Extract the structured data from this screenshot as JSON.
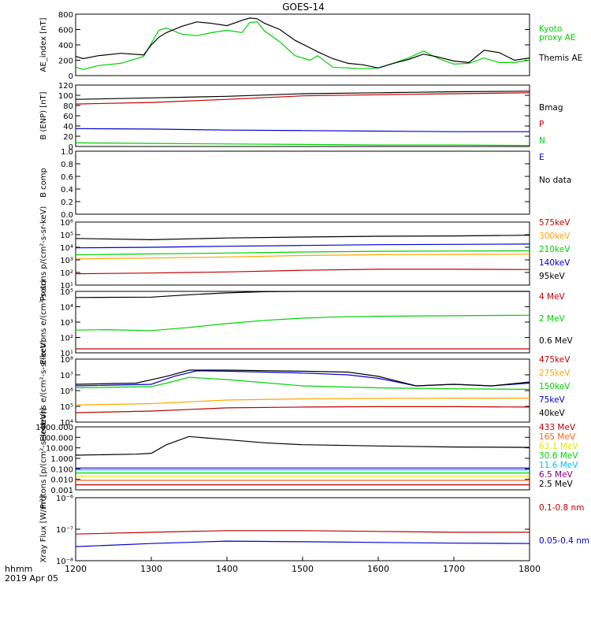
{
  "title": "GOES-14",
  "footer": {
    "time_label": "hhmm",
    "date_label": "2019 Apr 05"
  },
  "x_axis": {
    "min": 1200,
    "max": 1800,
    "ticks": [
      "1200",
      "1300",
      "1400",
      "1500",
      "1600",
      "1700",
      "1800"
    ]
  },
  "colors": {
    "black": "#000000",
    "red": "#c00000",
    "green": "#00d000",
    "blue": "#0000d0",
    "orange": "#ffa500",
    "cyan": "#00c0ff",
    "yellow": "#e8e800",
    "purple": "#800080"
  },
  "chart_data": [
    {
      "type": "line",
      "ylabel": "AE_index [nT]",
      "ylim": [
        0,
        800
      ],
      "yticks": [
        "0",
        "200",
        "400",
        "600",
        "800"
      ],
      "series": [
        {
          "name": "Kyoto proxy AE",
          "color": "#00d000",
          "x": [
            1200,
            1210,
            1230,
            1260,
            1290,
            1300,
            1310,
            1320,
            1340,
            1360,
            1380,
            1400,
            1420,
            1430,
            1440,
            1450,
            1470,
            1490,
            1510,
            1520,
            1540,
            1560,
            1580,
            1600,
            1620,
            1640,
            1660,
            1680,
            1700,
            1720,
            1740,
            1760,
            1780,
            1800
          ],
          "y": [
            110,
            80,
            130,
            160,
            250,
            420,
            590,
            620,
            540,
            520,
            560,
            590,
            560,
            690,
            700,
            580,
            440,
            260,
            200,
            260,
            110,
            100,
            90,
            100,
            160,
            230,
            320,
            220,
            150,
            160,
            230,
            170,
            170,
            200
          ]
        },
        {
          "name": "Themis AE",
          "color": "#000000",
          "x": [
            1200,
            1210,
            1230,
            1260,
            1290,
            1300,
            1310,
            1320,
            1340,
            1360,
            1380,
            1400,
            1420,
            1430,
            1440,
            1450,
            1470,
            1490,
            1510,
            1520,
            1540,
            1560,
            1580,
            1600,
            1620,
            1640,
            1660,
            1680,
            1700,
            1720,
            1740,
            1760,
            1780,
            1800
          ],
          "y": [
            250,
            220,
            260,
            290,
            270,
            400,
            500,
            560,
            640,
            700,
            680,
            650,
            720,
            750,
            740,
            680,
            600,
            460,
            360,
            310,
            220,
            160,
            140,
            100,
            160,
            210,
            280,
            240,
            190,
            170,
            330,
            300,
            200,
            230
          ]
        }
      ],
      "labels": [
        {
          "text": "Kyoto",
          "color": "#00d000"
        },
        {
          "text": "proxy AE",
          "color": "#00d000"
        },
        {
          "text": "Themis AE",
          "color": "#000000"
        }
      ]
    },
    {
      "type": "line",
      "ylabel": "B (ENP) [nT]",
      "ylim": [
        0,
        120
      ],
      "yticks": [
        "0",
        "20",
        "40",
        "60",
        "80",
        "100",
        "120"
      ],
      "series": [
        {
          "name": "Bmag",
          "color": "#000000",
          "x": [
            1200,
            1300,
            1400,
            1500,
            1600,
            1700,
            1800
          ],
          "y": [
            92,
            95,
            98,
            103,
            105,
            107,
            108
          ]
        },
        {
          "name": "P",
          "color": "#c00000",
          "x": [
            1200,
            1300,
            1400,
            1500,
            1600,
            1700,
            1800
          ],
          "y": [
            83,
            86,
            92,
            99,
            101,
            103,
            105
          ]
        },
        {
          "name": "N",
          "color": "#00d000",
          "x": [
            1200,
            1300,
            1400,
            1500,
            1600,
            1700,
            1800
          ],
          "y": [
            7,
            6,
            5,
            4,
            3,
            3,
            2
          ]
        },
        {
          "name": "E",
          "color": "#0000d0",
          "x": [
            1200,
            1300,
            1400,
            1500,
            1600,
            1700,
            1800
          ],
          "y": [
            35,
            34,
            32,
            31,
            30,
            29,
            29
          ]
        }
      ],
      "labels": [
        {
          "text": "Bmag",
          "color": "#000000"
        },
        {
          "text": "P",
          "color": "#c00000"
        },
        {
          "text": "N",
          "color": "#00d000"
        },
        {
          "text": "E",
          "color": "#0000d0"
        }
      ]
    },
    {
      "type": "line",
      "ylabel": "B comp",
      "ylim": [
        0,
        1
      ],
      "yticks": [
        "0.0",
        "0.2",
        "0.4",
        "0.6",
        "0.8",
        "1.0"
      ],
      "series": [],
      "labels": [
        {
          "text": "No data",
          "color": "#000000"
        }
      ]
    },
    {
      "type": "line",
      "log": true,
      "ylabel": "Protons p/(cm²-s-sr-keV)",
      "ylim": [
        10,
        1000000
      ],
      "yticks": [
        "10¹",
        "10²",
        "10³",
        "10⁴",
        "10⁵",
        "10⁶"
      ],
      "series": [
        {
          "name": "575keV",
          "color": "#c00000",
          "x": [
            1200,
            1300,
            1400,
            1500,
            1600,
            1700,
            1800
          ],
          "y": [
            80,
            90,
            110,
            150,
            180,
            180,
            170
          ]
        },
        {
          "name": "300keV",
          "color": "#ffa500",
          "x": [
            1200,
            1300,
            1400,
            1500,
            1600,
            1700,
            1800
          ],
          "y": [
            1200,
            1400,
            1700,
            2200,
            2600,
            2700,
            2800
          ]
        },
        {
          "name": "210keV",
          "color": "#00d000",
          "x": [
            1200,
            1300,
            1400,
            1500,
            1600,
            1700,
            1800
          ],
          "y": [
            2500,
            3000,
            3500,
            4200,
            4800,
            5000,
            5200
          ]
        },
        {
          "name": "140keV",
          "color": "#0000d0",
          "x": [
            1200,
            1300,
            1400,
            1500,
            1600,
            1700,
            1800
          ],
          "y": [
            9000,
            10000,
            12000,
            14000,
            16000,
            17000,
            18000
          ]
        },
        {
          "name": "95keV",
          "color": "#000000",
          "x": [
            1200,
            1300,
            1400,
            1500,
            1600,
            1700,
            1800
          ],
          "y": [
            50000,
            40000,
            55000,
            65000,
            75000,
            80000,
            90000
          ]
        }
      ],
      "labels": [
        {
          "text": "575keV",
          "color": "#c00000"
        },
        {
          "text": "300keV",
          "color": "#ffa500"
        },
        {
          "text": "210keV",
          "color": "#00d000"
        },
        {
          "text": "140keV",
          "color": "#0000d0"
        },
        {
          "text": "95keV",
          "color": "#000000"
        }
      ]
    },
    {
      "type": "line",
      "log": true,
      "ylabel": "Electrons e/(cm²-s-sr)",
      "ylim": [
        10,
        100000
      ],
      "yticks": [
        "10¹",
        "10²",
        "10³",
        "10⁴",
        "10⁵"
      ],
      "series": [
        {
          "name": "4 MeV",
          "color": "#c00000",
          "x": [
            1200,
            1300,
            1400,
            1500,
            1600,
            1700,
            1800
          ],
          "y": [
            18,
            18,
            18,
            18,
            18,
            18,
            18
          ]
        },
        {
          "name": "2 MeV",
          "color": "#00d000",
          "x": [
            1200,
            1240,
            1300,
            1350,
            1400,
            1450,
            1500,
            1550,
            1600,
            1700,
            1800
          ],
          "y": [
            300,
            320,
            280,
            450,
            800,
            1300,
            1800,
            2200,
            2400,
            2600,
            2800
          ]
        },
        {
          "name": "0.6 MeV",
          "color": "#000000",
          "x": [
            1200,
            1300,
            1350,
            1400,
            1450,
            1500,
            1600,
            1700,
            1800
          ],
          "y": [
            40000,
            42000,
            60000,
            80000,
            95000,
            100000,
            100000,
            100000,
            100000
          ]
        }
      ],
      "labels": [
        {
          "text": "4 MeV",
          "color": "#c00000"
        },
        {
          "text": "2 MeV",
          "color": "#00d000"
        },
        {
          "text": "0.6 MeV",
          "color": "#000000"
        }
      ]
    },
    {
      "type": "line",
      "log": true,
      "ylabel": "Electrons e/(cm²-s-sr-keV)",
      "ylim": [
        10000,
        100000000
      ],
      "yticks": [
        "10⁴",
        "10⁵",
        "10⁶",
        "10⁷",
        "10⁸"
      ],
      "series": [
        {
          "name": "475keV",
          "color": "#c00000",
          "x": [
            1200,
            1300,
            1400,
            1500,
            1600,
            1700,
            1800
          ],
          "y": [
            40000,
            50000,
            80000,
            90000,
            95000,
            95000,
            90000
          ]
        },
        {
          "name": "275keV",
          "color": "#ffa500",
          "x": [
            1200,
            1300,
            1400,
            1500,
            1600,
            1700,
            1800
          ],
          "y": [
            120000,
            150000,
            250000,
            300000,
            320000,
            330000,
            330000
          ]
        },
        {
          "name": "150keV",
          "color": "#00d000",
          "x": [
            1200,
            1300,
            1320,
            1350,
            1400,
            1500,
            1600,
            1700,
            1800
          ],
          "y": [
            1500000,
            1800000,
            3000000,
            7000000,
            5000000,
            2000000,
            1500000,
            1300000,
            1200000
          ]
        },
        {
          "name": "75keV",
          "color": "#0000d0",
          "x": [
            1200,
            1300,
            1330,
            1360,
            1400,
            1500,
            1560,
            1600,
            1650,
            1700,
            1750,
            1800
          ],
          "y": [
            2000000,
            2500000,
            8000000,
            18000000,
            17000000,
            13000000,
            10000000,
            6000000,
            2000000,
            2500000,
            2000000,
            3000000
          ]
        },
        {
          "name": "40keV",
          "color": "#000000",
          "x": [
            1200,
            1280,
            1320,
            1350,
            1400,
            1500,
            1560,
            1600,
            1650,
            1700,
            1750,
            1800
          ],
          "y": [
            2500000,
            3000000,
            8000000,
            20000000,
            20000000,
            17000000,
            15000000,
            8000000,
            2000000,
            2500000,
            2000000,
            3500000
          ]
        }
      ],
      "labels": [
        {
          "text": "475keV",
          "color": "#c00000"
        },
        {
          "text": "275keV",
          "color": "#ffa500"
        },
        {
          "text": "150keV",
          "color": "#00d000"
        },
        {
          "text": "75keV",
          "color": "#0000d0"
        },
        {
          "text": "40keV",
          "color": "#000000"
        }
      ]
    },
    {
      "type": "line",
      "log": true,
      "ylabel": "Protons [p/(cm²-s-sr-keV)]",
      "ylim": [
        0.001,
        1000
      ],
      "yticks": [
        "0.001",
        "0.010",
        "0.100",
        "1.000",
        "10.000",
        "100.000",
        "1000.000"
      ],
      "series": [
        {
          "name": "433 MeV",
          "color": "#c00000",
          "x": [
            1200,
            1300,
            1400,
            1500,
            1600,
            1700,
            1800
          ],
          "y": [
            0.003,
            0.003,
            0.003,
            0.003,
            0.003,
            0.003,
            0.003
          ]
        },
        {
          "name": "165 MeV",
          "color": "#ff6020",
          "x": [
            1200,
            1300,
            1400,
            1500,
            1600,
            1700,
            1800
          ],
          "y": [
            0.008,
            0.008,
            0.008,
            0.008,
            0.008,
            0.008,
            0.008
          ]
        },
        {
          "name": "63.1 MeV",
          "color": "#e8e800",
          "x": [
            1200,
            1300,
            1400,
            1500,
            1600,
            1700,
            1800
          ],
          "y": [
            0.02,
            0.02,
            0.02,
            0.02,
            0.02,
            0.02,
            0.02
          ]
        },
        {
          "name": "30.6 MeV",
          "color": "#00d000",
          "x": [
            1200,
            1300,
            1400,
            1500,
            1600,
            1700,
            1800
          ],
          "y": [
            0.04,
            0.04,
            0.04,
            0.04,
            0.04,
            0.04,
            0.04
          ]
        },
        {
          "name": "11.6 MeV",
          "color": "#00c0ff",
          "x": [
            1200,
            1300,
            1400,
            1500,
            1600,
            1700,
            1800
          ],
          "y": [
            0.08,
            0.08,
            0.08,
            0.08,
            0.08,
            0.08,
            0.08
          ]
        },
        {
          "name": "6.5 MeV",
          "color": "#0000d0",
          "x": [
            1200,
            1300,
            1400,
            1500,
            1600,
            1700,
            1800
          ],
          "y": [
            0.12,
            0.12,
            0.12,
            0.12,
            0.12,
            0.12,
            0.12
          ]
        },
        {
          "name": "2.5 MeV",
          "color": "#000000",
          "x": [
            1200,
            1280,
            1300,
            1320,
            1350,
            1400,
            1450,
            1500,
            1600,
            1700,
            1800
          ],
          "y": [
            2,
            2.5,
            3,
            20,
            120,
            60,
            30,
            20,
            15,
            12,
            11
          ]
        }
      ],
      "labels": [
        {
          "text": "433 MeV",
          "color": "#c00000"
        },
        {
          "text": "165 MeV",
          "color": "#ff6020"
        },
        {
          "text": "63.1 MeV",
          "color": "#e8e800"
        },
        {
          "text": "30.6 MeV",
          "color": "#00d000"
        },
        {
          "text": "11.6 MeV",
          "color": "#00c0ff"
        },
        {
          "text": "6.5 MeV",
          "color": "#800080"
        },
        {
          "text": "2.5 MeV",
          "color": "#000000"
        }
      ]
    },
    {
      "type": "line",
      "log": true,
      "ylabel": "Xray Flux [W/m²]",
      "ylim": [
        1e-08,
        1e-06
      ],
      "yticks": [
        "10⁻⁸",
        "10⁻⁷",
        "10⁻⁶"
      ],
      "series": [
        {
          "name": "0.1-0.8 nm",
          "color": "#c00000",
          "x": [
            1200,
            1300,
            1400,
            1500,
            1600,
            1700,
            1800
          ],
          "y": [
            7e-08,
            8e-08,
            9e-08,
            9e-08,
            8.5e-08,
            8e-08,
            8e-08
          ]
        },
        {
          "name": "0.05-0.4 nm",
          "color": "#0000d0",
          "x": [
            1200,
            1300,
            1400,
            1500,
            1600,
            1700,
            1800
          ],
          "y": [
            2.8e-08,
            3.5e-08,
            4.2e-08,
            4e-08,
            3.8e-08,
            3.6e-08,
            3.5e-08
          ]
        }
      ],
      "labels": [
        {
          "text": "0.1-0.8 nm",
          "color": "#c00000"
        },
        {
          "text": "0.05-0.4 nm",
          "color": "#0000d0"
        }
      ]
    }
  ]
}
